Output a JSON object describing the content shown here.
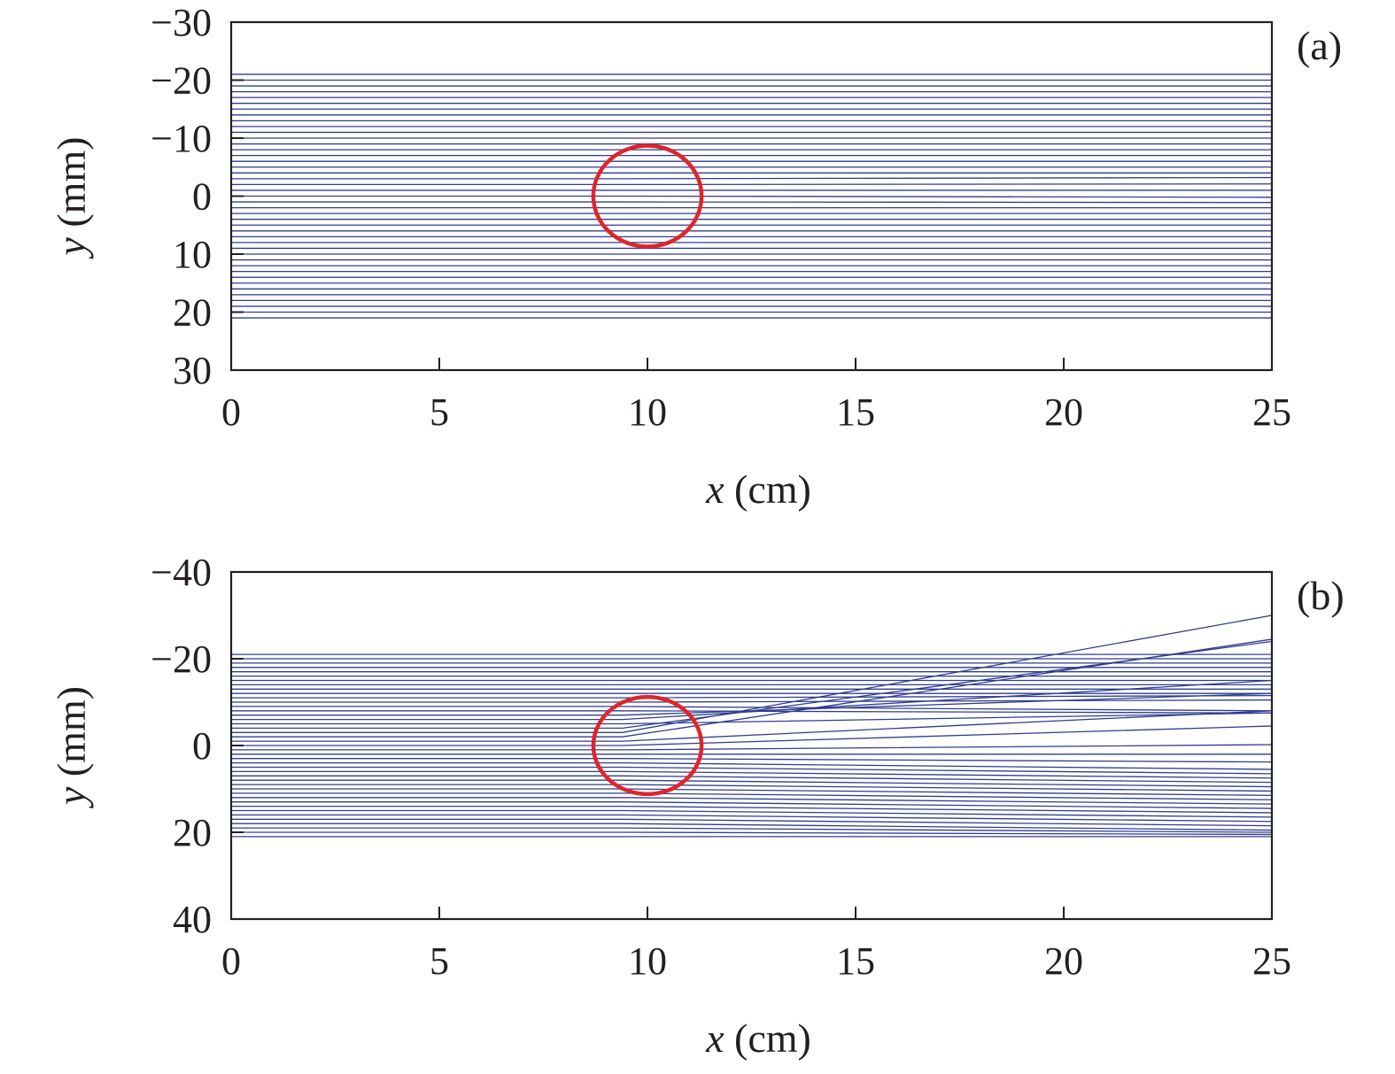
{
  "colors": {
    "ray": "#2e3d8f",
    "lens": "#e0242b",
    "axis": "#231f20"
  },
  "chart_data": [
    {
      "type": "line",
      "panel_label": "(a)",
      "xlabel_var": "x",
      "xlabel_unit": " (cm)",
      "ylabel_var": "y",
      "ylabel_unit": " (mm)",
      "xlim": [
        0,
        25
      ],
      "ylim": [
        -30,
        30
      ],
      "y_inverted": true,
      "xticks": [
        "0",
        "5",
        "10",
        "15",
        "20",
        "25"
      ],
      "yticks": [
        "−30",
        "−20",
        "−10",
        "0",
        "10",
        "20",
        "30"
      ],
      "grid": false,
      "lens_circle": {
        "cx": 10,
        "cy": 0,
        "r_mm": 8.7,
        "rx_cm": 1.3
      },
      "rays": {
        "description_values": "parallel rays spaced 1 mm apart from y=-21 to y=21 mm, traced from x=0 to x=25 cm",
        "start_y": [
          -21,
          -20,
          -19,
          -18,
          -17,
          -16,
          -15,
          -14,
          -13,
          -12,
          -11,
          -10,
          -9,
          -8,
          -7,
          -6,
          -5,
          -4,
          -3,
          -2,
          -1,
          0,
          1,
          2,
          3,
          4,
          5,
          6,
          7,
          8,
          9,
          10,
          11,
          12,
          13,
          14,
          15,
          16,
          17,
          18,
          19,
          20,
          21
        ],
        "exit_y_at_25cm": [
          -21,
          -20,
          -19,
          -18,
          -17,
          -16,
          -15,
          -14,
          -13,
          -12,
          -11,
          -10,
          -9,
          -8,
          -7,
          -6,
          -5,
          -4,
          -3.2,
          -2.1,
          -1.0,
          0.2,
          1.1,
          2.0,
          3.0,
          4,
          5,
          6,
          7,
          8,
          9,
          10,
          11,
          12,
          13,
          14,
          15,
          16,
          17,
          18,
          19,
          20,
          21
        ]
      }
    },
    {
      "type": "line",
      "panel_label": "(b)",
      "xlabel_var": "x",
      "xlabel_unit": " (cm)",
      "ylabel_var": "y",
      "ylabel_unit": " (mm)",
      "xlim": [
        0,
        25
      ],
      "ylim": [
        -40,
        40
      ],
      "y_inverted": true,
      "xticks": [
        "0",
        "5",
        "10",
        "15",
        "20",
        "25"
      ],
      "yticks": [
        "−40",
        "−20",
        "0",
        "20",
        "40"
      ],
      "grid": false,
      "lens_circle": {
        "cx": 10,
        "cy": 0,
        "r_mm": 11.2,
        "rx_cm": 1.3
      },
      "rays": {
        "description_values": "parallel rays spaced 1 mm apart from y=-21 to y=21 mm; rays crossing the lens are deflected toward negative y",
        "start_y": [
          -21,
          -20,
          -19,
          -18,
          -17,
          -16,
          -15,
          -14,
          -13,
          -12,
          -11,
          -10,
          -9,
          -8,
          -7,
          -6,
          -5,
          -4,
          -3,
          -2,
          -1,
          0,
          1,
          2,
          3,
          4,
          5,
          6,
          7,
          8,
          9,
          10,
          11,
          12,
          13,
          14,
          15,
          16,
          17,
          18,
          19,
          20,
          21
        ],
        "exit_y_at_25cm": [
          -21,
          -20,
          -19,
          -18,
          -17,
          -16,
          -15,
          -14,
          -13,
          -12,
          -11.5,
          -10.5,
          -8.0,
          -7.5,
          -12.0,
          -15.0,
          -7.5,
          -24.0,
          -30.0,
          -24.5,
          -8.0,
          -4.5,
          -0.2,
          2.0,
          3.8,
          5.5,
          6.5,
          7.5,
          8.5,
          9.5,
          10.5,
          11.5,
          12.5,
          13.5,
          14.5,
          15.5,
          16.5,
          17.5,
          18.5,
          19.5,
          20,
          20.5,
          21
        ]
      }
    }
  ]
}
